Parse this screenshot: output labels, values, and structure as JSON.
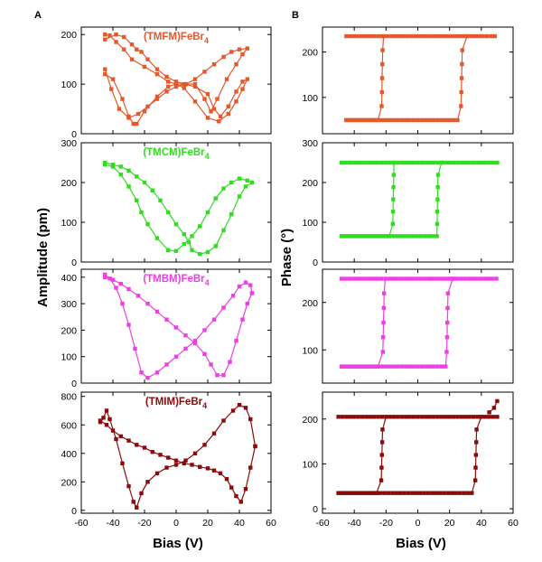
{
  "panels": {
    "a_letter": "A",
    "b_letter": "B"
  },
  "axes": {
    "x_label": "Bias (V)",
    "y_label_a": "Amplitude (pm)",
    "y_label_b": "Phase (°)"
  },
  "chart_data": [
    {
      "id": "A1",
      "type": "scatter",
      "title": "(TMFM)FeBr",
      "title_sub": "4",
      "color": "#e4582b",
      "xlim": [
        -60,
        60
      ],
      "ylim": [
        0,
        215
      ],
      "xticks": [
        -60,
        -40,
        -20,
        0,
        20,
        40,
        60
      ],
      "yticks": [
        0,
        100,
        200
      ],
      "show_x_labels": false,
      "ylabel": "Amplitude (pm)",
      "series": [
        {
          "name": "forward",
          "x": [
            -45,
            -40,
            -34,
            -30,
            -27,
            -25,
            -20,
            -12,
            -5,
            0,
            5,
            12,
            20,
            27,
            33,
            38,
            42,
            45,
            42,
            38,
            33,
            28,
            24,
            20,
            12,
            5,
            0,
            -5,
            -12,
            -20,
            -28,
            -33,
            -38,
            -42,
            -45
          ],
          "y": [
            120,
            110,
            70,
            35,
            20,
            20,
            45,
            75,
            95,
            100,
            92,
            65,
            32,
            25,
            40,
            65,
            90,
            110,
            105,
            85,
            55,
            35,
            50,
            80,
            95,
            100,
            100,
            105,
            120,
            135,
            150,
            170,
            185,
            198,
            200
          ]
        },
        {
          "name": "reverse",
          "x": [
            -45,
            -38,
            -33,
            -28,
            -25,
            -22,
            -18,
            -12,
            -6,
            0,
            6,
            12,
            18,
            24,
            30,
            35,
            40,
            45,
            42,
            38,
            32,
            26,
            22,
            18,
            12,
            6,
            0,
            -6,
            -12,
            -18,
            -24,
            -30,
            -36,
            -41,
            -45
          ],
          "y": [
            190,
            200,
            195,
            180,
            170,
            165,
            150,
            130,
            115,
            105,
            100,
            110,
            125,
            140,
            155,
            165,
            170,
            172,
            160,
            140,
            110,
            70,
            45,
            70,
            100,
            100,
            95,
            85,
            70,
            55,
            40,
            32,
            50,
            90,
            130
          ]
        }
      ]
    },
    {
      "id": "A2",
      "type": "scatter",
      "title": "(TMCM)FeBr",
      "title_sub": "4",
      "color": "#2ede1f",
      "xlim": [
        -60,
        60
      ],
      "ylim": [
        0,
        300
      ],
      "xticks": [
        -60,
        -40,
        -20,
        0,
        20,
        40,
        60
      ],
      "yticks": [
        0,
        100,
        200,
        300
      ],
      "show_x_labels": false,
      "ylabel": "Amplitude (pm)",
      "series": [
        {
          "name": "forward",
          "x": [
            -45,
            -40,
            -35,
            -30,
            -25,
            -22,
            -18,
            -12,
            -5,
            0,
            5,
            10,
            15,
            20,
            25,
            30,
            35,
            40,
            45,
            48
          ],
          "y": [
            245,
            240,
            220,
            190,
            155,
            125,
            95,
            60,
            30,
            28,
            45,
            65,
            90,
            125,
            160,
            185,
            200,
            210,
            205,
            200
          ]
        },
        {
          "name": "reverse",
          "x": [
            48,
            44,
            40,
            35,
            30,
            25,
            20,
            15,
            10,
            8,
            5,
            0,
            -5,
            -10,
            -15,
            -20,
            -25,
            -30,
            -35,
            -40,
            -45
          ],
          "y": [
            200,
            190,
            165,
            120,
            80,
            40,
            25,
            20,
            30,
            50,
            70,
            95,
            125,
            155,
            180,
            200,
            215,
            230,
            240,
            245,
            250
          ]
        }
      ]
    },
    {
      "id": "A3",
      "type": "scatter",
      "title": "(TMBM)FeBr",
      "title_sub": "4",
      "color": "#ee3ee4",
      "xlim": [
        -60,
        60
      ],
      "ylim": [
        0,
        430
      ],
      "xticks": [
        -60,
        -40,
        -20,
        0,
        20,
        40,
        60
      ],
      "yticks": [
        0,
        100,
        200,
        300,
        400
      ],
      "show_x_labels": false,
      "ylabel": "Amplitude (pm)",
      "series": [
        {
          "name": "forward",
          "x": [
            -45,
            -42,
            -38,
            -34,
            -30,
            -26,
            -22,
            -18,
            -12,
            -6,
            0,
            6,
            12,
            18,
            24,
            30,
            36,
            40,
            44,
            47,
            48
          ],
          "y": [
            410,
            395,
            360,
            300,
            220,
            130,
            40,
            20,
            40,
            70,
            100,
            130,
            160,
            200,
            240,
            285,
            330,
            365,
            380,
            370,
            340
          ]
        },
        {
          "name": "reverse",
          "x": [
            48,
            45,
            42,
            38,
            34,
            30,
            26,
            22,
            18,
            12,
            6,
            0,
            -6,
            -12,
            -18,
            -24,
            -30,
            -35,
            -40,
            -45
          ],
          "y": [
            340,
            300,
            240,
            160,
            80,
            30,
            30,
            70,
            110,
            150,
            180,
            210,
            240,
            270,
            300,
            330,
            355,
            375,
            390,
            400
          ]
        }
      ]
    },
    {
      "id": "A4",
      "type": "scatter",
      "title": "(TMIM)FeBr",
      "title_sub": "4",
      "color": "#8b0b0b",
      "xlim": [
        -60,
        60
      ],
      "ylim": [
        -20,
        830
      ],
      "xticks": [
        -60,
        -40,
        -20,
        0,
        20,
        40,
        60
      ],
      "yticks": [
        0,
        200,
        400,
        600,
        800
      ],
      "show_x_labels": true,
      "ylabel": "Amplitude (pm)",
      "series": [
        {
          "name": "forward",
          "x": [
            -48,
            -46,
            -44,
            -42,
            -38,
            -34,
            -30,
            -27,
            -25,
            -22,
            -18,
            -12,
            -6,
            0,
            6,
            12,
            18,
            24,
            30,
            36,
            40,
            44,
            47,
            50
          ],
          "y": [
            620,
            650,
            700,
            640,
            500,
            330,
            170,
            60,
            20,
            120,
            200,
            260,
            300,
            320,
            350,
            400,
            460,
            540,
            630,
            700,
            740,
            720,
            640,
            450
          ]
        },
        {
          "name": "reverse",
          "x": [
            50,
            47,
            44,
            41,
            38,
            35,
            32,
            28,
            24,
            20,
            15,
            10,
            5,
            0,
            -5,
            -10,
            -15,
            -20,
            -25,
            -30,
            -35,
            -40,
            -44,
            -48
          ],
          "y": [
            450,
            300,
            150,
            60,
            100,
            160,
            220,
            260,
            280,
            295,
            305,
            320,
            330,
            350,
            370,
            390,
            410,
            440,
            460,
            490,
            520,
            560,
            600,
            630
          ]
        }
      ]
    },
    {
      "id": "B1",
      "type": "scatter",
      "title": "",
      "color": "#e4582b",
      "xlim": [
        -60,
        60
      ],
      "ylim": [
        20,
        255
      ],
      "xticks": [
        -60,
        -40,
        -20,
        0,
        20,
        40,
        60
      ],
      "yticks": [
        100,
        200
      ],
      "show_x_labels": false,
      "ylabel": "Phase (°)",
      "loop": {
        "high": 235,
        "low": 50,
        "x_start": -45,
        "x_end": 50,
        "up_left": 27,
        "up_right": 31,
        "down_left": -25,
        "down_right": -22
      }
    },
    {
      "id": "B2",
      "type": "scatter",
      "title": "",
      "color": "#2ede1f",
      "xlim": [
        -60,
        60
      ],
      "ylim": [
        0,
        300
      ],
      "xticks": [
        -60,
        -40,
        -20,
        0,
        20,
        40,
        60
      ],
      "yticks": [
        0,
        100,
        200,
        300
      ],
      "show_x_labels": false,
      "ylabel": "Phase (°)",
      "loop": {
        "high": 250,
        "low": 65,
        "x_start": -48,
        "x_end": 50,
        "up_left": 12,
        "up_right": 15,
        "down_left": -18,
        "down_right": -15
      }
    },
    {
      "id": "B3",
      "type": "scatter",
      "title": "",
      "color": "#ee3ee4",
      "xlim": [
        -60,
        60
      ],
      "ylim": [
        30,
        270
      ],
      "xticks": [
        -60,
        -40,
        -20,
        0,
        20,
        40,
        60
      ],
      "yticks": [
        100,
        200
      ],
      "show_x_labels": false,
      "ylabel": "Phase (°)",
      "loop": {
        "high": 250,
        "low": 65,
        "x_start": -48,
        "x_end": 50,
        "up_left": 18,
        "up_right": 22,
        "down_left": -25,
        "down_right": -21
      }
    },
    {
      "id": "B4",
      "type": "scatter",
      "title": "",
      "color": "#8b0b0b",
      "xlim": [
        -60,
        60
      ],
      "ylim": [
        -10,
        260
      ],
      "xticks": [
        -60,
        -40,
        -20,
        0,
        20,
        40,
        60
      ],
      "yticks": [
        0,
        100,
        200
      ],
      "show_x_labels": true,
      "ylabel": "Phase (°)",
      "loop": {
        "high": 205,
        "low": 35,
        "x_start": -50,
        "x_end": 50,
        "up_left": 36,
        "up_right": 40,
        "down_left": -26,
        "down_right": -22,
        "tail": [
          [
            45,
            215
          ],
          [
            48,
            225
          ],
          [
            50,
            240
          ]
        ]
      }
    }
  ]
}
